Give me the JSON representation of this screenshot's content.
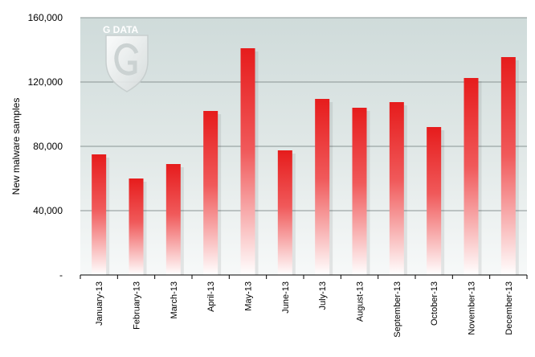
{
  "chart_data": {
    "type": "bar",
    "ylabel": "New malware samples",
    "xlabel": "",
    "categories": [
      "January-13",
      "February-13",
      "March-13",
      "April-13",
      "May-13",
      "June-13",
      "July-13",
      "August-13",
      "September-13",
      "October-13",
      "November-13",
      "December-13"
    ],
    "values": [
      75000,
      60000,
      69000,
      102000,
      141000,
      77500,
      109500,
      104000,
      107500,
      92000,
      122500,
      135500
    ],
    "ylim": [
      0,
      160000
    ],
    "yticks": [
      0,
      40000,
      80000,
      120000,
      160000
    ],
    "ytick_labels": [
      "-",
      "40,000",
      "80,000",
      "120,000",
      "160,000"
    ],
    "grid": true,
    "bar_color_top": "#e8231f",
    "bar_color_bottom": "#ffffff",
    "plot_background": "#d7e1e0"
  },
  "logo": {
    "text": "G DATA",
    "icon": "g-data-shield-logo"
  }
}
